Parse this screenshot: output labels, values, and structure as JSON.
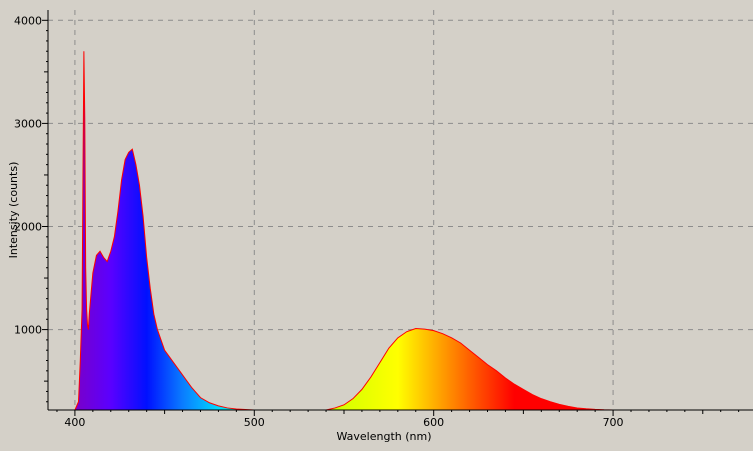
{
  "chart_data": {
    "type": "area",
    "title": "",
    "xlabel": "Wavelength (nm)",
    "ylabel": "Intensity (counts)",
    "xlim": [
      385,
      778
    ],
    "ylim": [
      220,
      4100
    ],
    "grid": true,
    "x_ticks": [
      400,
      500,
      600,
      700
    ],
    "y_ticks": [
      1000,
      2000,
      3000,
      4000
    ],
    "x_tick_labels": [
      "400",
      "500",
      "600",
      "700"
    ],
    "y_tick_labels": [
      "1000",
      "2000",
      "3000",
      "4000"
    ],
    "colors": {
      "background": "#d4d0c8",
      "outline": "#ff0000",
      "grid": "#8c8c8c",
      "axis": "#000000"
    },
    "fill": "spectral wavelength gradient",
    "x": [
      400,
      402,
      403,
      404,
      404.5,
      405,
      405.5,
      406,
      406.5,
      407,
      407.5,
      408,
      409,
      410,
      412,
      414,
      416,
      418,
      420,
      422,
      424,
      426,
      428,
      430,
      432,
      434,
      436,
      438,
      440,
      442,
      444,
      446,
      448,
      450,
      455,
      460,
      465,
      470,
      475,
      480,
      485,
      490,
      495,
      500,
      540,
      545,
      550,
      555,
      560,
      565,
      570,
      575,
      580,
      585,
      590,
      595,
      600,
      605,
      610,
      615,
      620,
      625,
      630,
      635,
      640,
      645,
      650,
      655,
      660,
      665,
      670,
      675,
      680,
      685,
      690,
      695,
      700,
      720
    ],
    "y": [
      220,
      300,
      700,
      1200,
      2500,
      3700,
      3050,
      1600,
      1200,
      1050,
      1000,
      1150,
      1350,
      1550,
      1720,
      1760,
      1700,
      1660,
      1760,
      1900,
      2150,
      2450,
      2650,
      2720,
      2750,
      2600,
      2400,
      2100,
      1700,
      1400,
      1150,
      1000,
      900,
      800,
      680,
      560,
      440,
      340,
      290,
      260,
      240,
      230,
      225,
      220,
      220,
      240,
      270,
      330,
      420,
      540,
      680,
      820,
      920,
      980,
      1010,
      1005,
      990,
      960,
      920,
      870,
      800,
      730,
      660,
      600,
      530,
      470,
      420,
      370,
      330,
      300,
      275,
      255,
      240,
      232,
      226,
      222,
      220,
      220
    ]
  }
}
